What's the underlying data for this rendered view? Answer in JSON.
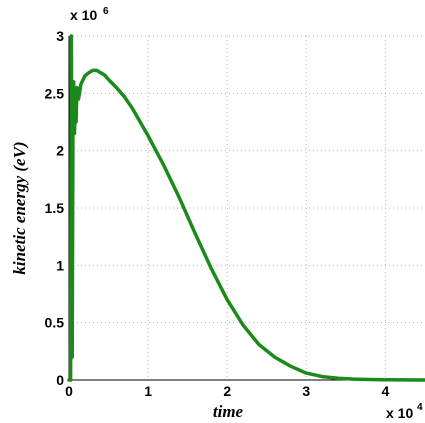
{
  "chart_data": {
    "type": "line",
    "title": "",
    "xlabel": "time",
    "ylabel": "kinetic energy (eV)",
    "x_multiplier": "x 10",
    "x_multiplier_exp": "4",
    "y_multiplier": "x 10",
    "y_multiplier_exp": "6",
    "xlim": [
      0,
      4.5
    ],
    "ylim": [
      0,
      3
    ],
    "x_ticks": [
      "0",
      "1",
      "2",
      "3",
      "4"
    ],
    "y_ticks": [
      "0",
      "0.5",
      "1",
      "1.5",
      "2",
      "2.5",
      "3"
    ],
    "grid": true,
    "legend": "none",
    "color": "#1b8a1b",
    "series": [
      {
        "x": [
          0,
          0.02,
          0.03,
          0.04,
          0.05,
          0.06,
          0.07,
          0.08,
          0.09,
          0.1,
          0.12,
          0.15,
          0.2,
          0.25,
          0.3,
          0.35,
          0.4,
          0.45,
          0.5,
          0.6,
          0.7,
          0.8,
          0.9,
          1.0,
          1.2,
          1.4,
          1.6,
          1.8,
          2.0,
          2.2,
          2.4,
          2.6,
          2.8,
          3.0,
          3.2,
          3.4,
          3.6,
          3.8,
          4.0,
          4.2,
          4.5
        ],
        "y": [
          0,
          0,
          3.0,
          0.2,
          2.3,
          2.6,
          2.15,
          2.45,
          2.25,
          2.55,
          2.45,
          2.58,
          2.65,
          2.68,
          2.7,
          2.7,
          2.68,
          2.66,
          2.62,
          2.55,
          2.47,
          2.37,
          2.25,
          2.13,
          1.87,
          1.58,
          1.27,
          0.97,
          0.7,
          0.48,
          0.31,
          0.2,
          0.12,
          0.06,
          0.03,
          0.015,
          0.008,
          0.004,
          0.002,
          0.001,
          0.0
        ]
      }
    ]
  }
}
